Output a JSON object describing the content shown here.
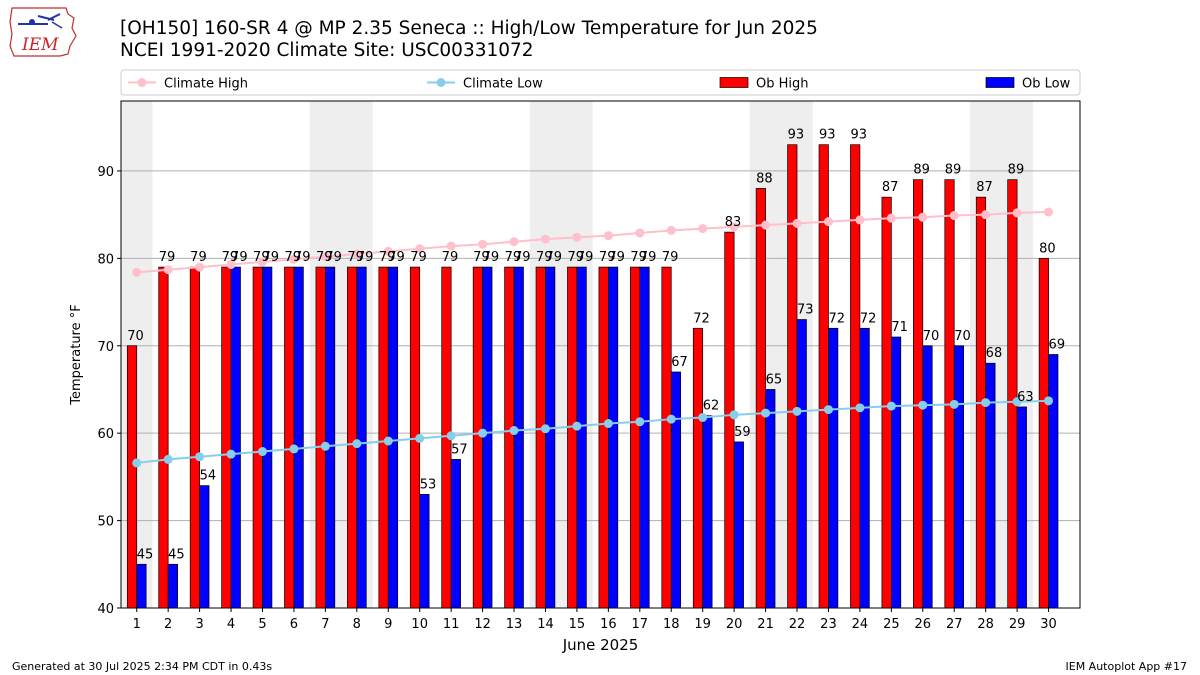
{
  "header": {
    "logo_text": "IEM",
    "title_line1": "[OH150] 160-SR 4 @ MP 2.35 Seneca :: High/Low Temperature for Jun 2025",
    "title_line2": "NCEI 1991-2020 Climate Site: USC00331072"
  },
  "footer": {
    "left": "Generated at 30 Jul 2025 2:34 PM CDT in 0.43s",
    "right": "IEM Autoplot App #17"
  },
  "colors": {
    "climate_high": "#ffc0cb",
    "climate_low": "#87ceeb",
    "ob_high": "#ff0000",
    "ob_low": "#0000ff",
    "weekend_shade": "#eeeeee"
  },
  "chart_data": {
    "type": "bar",
    "xlabel": "June 2025",
    "ylabel": "Temperature °F",
    "ylim": [
      40,
      98
    ],
    "yticks": [
      40,
      50,
      60,
      70,
      80,
      90
    ],
    "grid": true,
    "legend_placement": "top",
    "categories": [
      "1",
      "2",
      "3",
      "4",
      "5",
      "6",
      "7",
      "8",
      "9",
      "10",
      "11",
      "12",
      "13",
      "14",
      "15",
      "16",
      "17",
      "18",
      "19",
      "20",
      "21",
      "22",
      "23",
      "24",
      "25",
      "26",
      "27",
      "28",
      "29",
      "30"
    ],
    "shaded_days": [
      1,
      7,
      8,
      14,
      15,
      21,
      22,
      28,
      29
    ],
    "series": [
      {
        "name": "Climate High",
        "kind": "line",
        "values": [
          78.4,
          78.7,
          79.0,
          79.3,
          79.6,
          79.9,
          80.2,
          80.5,
          80.8,
          81.1,
          81.4,
          81.6,
          81.9,
          82.2,
          82.4,
          82.6,
          82.9,
          83.2,
          83.4,
          83.6,
          83.8,
          84.0,
          84.2,
          84.4,
          84.6,
          84.7,
          84.9,
          85.0,
          85.2,
          85.3
        ]
      },
      {
        "name": "Climate Low",
        "kind": "line",
        "values": [
          56.6,
          57.0,
          57.3,
          57.6,
          57.9,
          58.2,
          58.5,
          58.8,
          59.1,
          59.4,
          59.7,
          60.0,
          60.3,
          60.5,
          60.8,
          61.1,
          61.3,
          61.6,
          61.8,
          62.1,
          62.3,
          62.5,
          62.7,
          62.9,
          63.1,
          63.2,
          63.3,
          63.5,
          63.6,
          63.7
        ]
      },
      {
        "name": "Ob High",
        "kind": "bar",
        "values": [
          70,
          79,
          79,
          79,
          79,
          79,
          79,
          79,
          79,
          79,
          79,
          79,
          79,
          79,
          79,
          79,
          79,
          79,
          72,
          83,
          88,
          93,
          93,
          93,
          87,
          89,
          89,
          87,
          89,
          80
        ]
      },
      {
        "name": "Ob Low",
        "kind": "bar",
        "values": [
          45,
          45,
          54,
          79,
          79,
          79,
          79,
          79,
          79,
          53,
          57,
          79,
          79,
          79,
          79,
          79,
          79,
          67,
          62,
          59,
          65,
          73,
          72,
          72,
          71,
          70,
          70,
          68,
          63,
          69
        ]
      }
    ]
  }
}
